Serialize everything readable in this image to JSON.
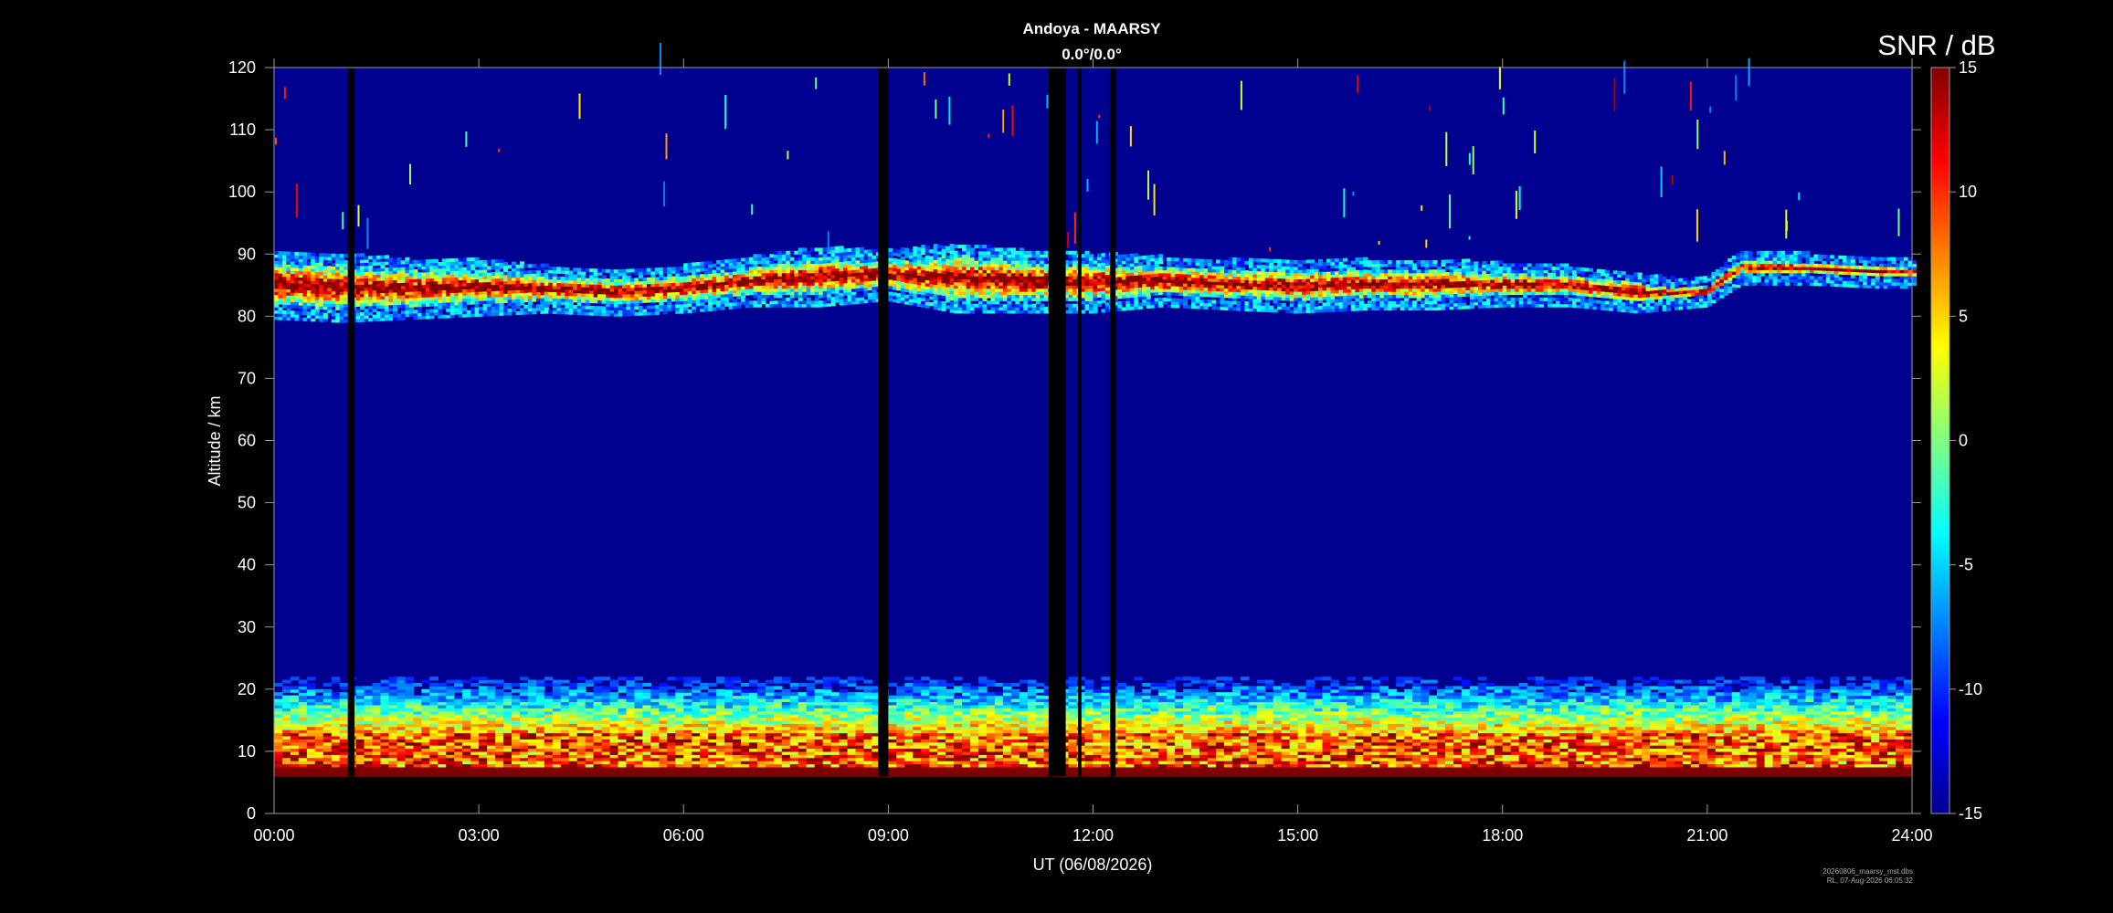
{
  "chart_data": {
    "type": "heatmap",
    "title": "Andoya - MAARSY",
    "subtitle": "0.0°/0.0°",
    "xlabel": "UT (06/08/2026)",
    "ylabel": "Altitude / km",
    "x_ticks": [
      "00:00",
      "03:00",
      "06:00",
      "09:00",
      "12:00",
      "15:00",
      "18:00",
      "21:00",
      "24:00"
    ],
    "xlim_hours": [
      0,
      24
    ],
    "y_ticks": [
      0,
      10,
      20,
      30,
      40,
      50,
      60,
      70,
      80,
      90,
      100,
      110,
      120
    ],
    "ylim": [
      0,
      120
    ],
    "colorbar": {
      "title": "SNR / dB",
      "range": [
        -15,
        15
      ],
      "ticks": [
        15,
        10,
        5,
        0,
        -5,
        -10,
        -15
      ],
      "colormap": [
        "#00008f",
        "#0000ff",
        "#0080ff",
        "#00ffff",
        "#80ff80",
        "#ffff00",
        "#ff8000",
        "#ff0000",
        "#800000"
      ]
    },
    "data_coverage_km": [
      6,
      120
    ],
    "gaps_hours": [
      [
        1.08,
        1.18
      ],
      [
        8.85,
        9.0
      ],
      [
        11.35,
        11.6
      ],
      [
        11.78,
        11.83
      ],
      [
        12.25,
        12.33
      ]
    ],
    "pmse_layer": [
      {
        "t": 0.0,
        "low": 81,
        "high": 89
      },
      {
        "t": 1.0,
        "low": 80.5,
        "high": 88.5
      },
      {
        "t": 2.0,
        "low": 81,
        "high": 87.5
      },
      {
        "t": 3.0,
        "low": 81.5,
        "high": 87.5
      },
      {
        "t": 4.0,
        "low": 82,
        "high": 86.5
      },
      {
        "t": 5.0,
        "low": 81.5,
        "high": 86
      },
      {
        "t": 6.0,
        "low": 82,
        "high": 86.5
      },
      {
        "t": 7.0,
        "low": 83,
        "high": 88
      },
      {
        "t": 8.0,
        "low": 83,
        "high": 89.5
      },
      {
        "t": 9.0,
        "low": 84,
        "high": 89
      },
      {
        "t": 10.0,
        "low": 82,
        "high": 90
      },
      {
        "t": 11.0,
        "low": 82,
        "high": 89
      },
      {
        "t": 12.0,
        "low": 82,
        "high": 88.5
      },
      {
        "t": 13.0,
        "low": 83,
        "high": 88
      },
      {
        "t": 14.0,
        "low": 82.5,
        "high": 87.5
      },
      {
        "t": 15.0,
        "low": 82,
        "high": 87.5
      },
      {
        "t": 16.0,
        "low": 82.5,
        "high": 87.5
      },
      {
        "t": 17.0,
        "low": 82.5,
        "high": 87.5
      },
      {
        "t": 18.0,
        "low": 83,
        "high": 87
      },
      {
        "t": 19.0,
        "low": 83,
        "high": 86.5
      },
      {
        "t": 19.5,
        "low": 82.5,
        "high": 86
      },
      {
        "t": 20.0,
        "low": 82,
        "high": 85.5
      },
      {
        "t": 20.5,
        "low": 82.5,
        "high": 84.5
      },
      {
        "t": 21.0,
        "low": 83,
        "high": 84.5
      },
      {
        "t": 21.5,
        "low": 86.5,
        "high": 89
      },
      {
        "t": 22.5,
        "low": 86.5,
        "high": 88.5
      },
      {
        "t": 23.5,
        "low": 86,
        "high": 88
      },
      {
        "t": 24.0,
        "low": 86,
        "high": 87.5
      }
    ],
    "grid": false,
    "colorbar_position": "right"
  },
  "footer": {
    "line1": "20260806_maarsy_mst.dbs",
    "line2": "RL, 07-Aug-2026 06:05:32"
  }
}
